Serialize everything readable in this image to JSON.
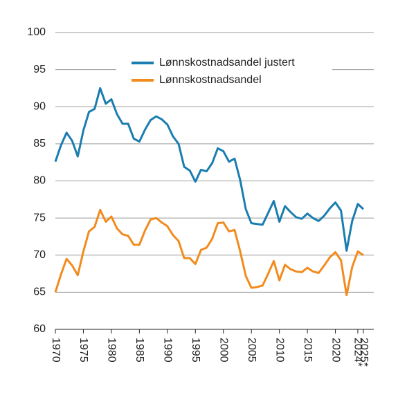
{
  "chart_data": {
    "type": "line",
    "x": [
      1970,
      1971,
      1972,
      1973,
      1974,
      1975,
      1976,
      1977,
      1978,
      1979,
      1980,
      1981,
      1982,
      1983,
      1984,
      1985,
      1986,
      1987,
      1988,
      1989,
      1990,
      1991,
      1992,
      1993,
      1994,
      1995,
      1996,
      1997,
      1998,
      1999,
      2000,
      2001,
      2002,
      2003,
      2004,
      2005,
      2006,
      2007,
      2008,
      2009,
      2010,
      2011,
      2012,
      2013,
      2014,
      2015,
      2016,
      2017,
      2018,
      2019,
      2020,
      2021,
      2022,
      2023,
      2024,
      2025
    ],
    "series": [
      {
        "name": "Lønnskostnadsandel justert",
        "color": "#1a7db0",
        "values": [
          82.6,
          84.8,
          86.5,
          85.4,
          83.3,
          86.8,
          89.3,
          89.7,
          92.5,
          90.4,
          91.0,
          89.0,
          87.7,
          87.7,
          85.7,
          85.3,
          86.9,
          88.2,
          88.7,
          88.3,
          87.6,
          86.0,
          85.0,
          81.9,
          81.4,
          79.9,
          81.5,
          81.3,
          82.4,
          84.4,
          84.0,
          82.6,
          83.0,
          80.1,
          76.2,
          74.3,
          74.2,
          74.1,
          75.7,
          77.3,
          74.5,
          76.6,
          75.8,
          75.1,
          74.9,
          75.6,
          75.0,
          74.6,
          75.3,
          76.3,
          77.1,
          76.0,
          70.6,
          74.6,
          76.9,
          76.2
        ]
      },
      {
        "name": "Lønnskostnadsandel",
        "color": "#f28b1e",
        "values": [
          65.0,
          67.4,
          69.5,
          68.6,
          67.3,
          70.5,
          73.2,
          73.8,
          76.1,
          74.5,
          75.2,
          73.6,
          72.8,
          72.6,
          71.4,
          71.4,
          73.3,
          74.8,
          75.0,
          74.4,
          73.9,
          72.7,
          71.9,
          69.6,
          69.6,
          68.8,
          70.7,
          71.0,
          72.2,
          74.3,
          74.4,
          73.2,
          73.4,
          70.5,
          67.2,
          65.6,
          65.7,
          65.9,
          67.5,
          69.2,
          66.6,
          68.7,
          68.1,
          67.8,
          67.7,
          68.3,
          67.8,
          67.6,
          68.6,
          69.7,
          70.4,
          69.3,
          64.6,
          68.4,
          70.5,
          70.0
        ]
      }
    ],
    "xlim": [
      1970,
      2025
    ],
    "xticks": [
      1970,
      1975,
      1980,
      1985,
      1990,
      1995,
      2000,
      2005,
      2010,
      2015,
      2020,
      {
        "value": 2024,
        "label": "2024*"
      },
      {
        "value": 2025,
        "label": "2025*"
      }
    ],
    "ylim": [
      60,
      100
    ],
    "yticks": [
      60,
      65,
      70,
      75,
      80,
      85,
      90,
      95,
      100
    ],
    "grid": true,
    "legend": "top"
  }
}
